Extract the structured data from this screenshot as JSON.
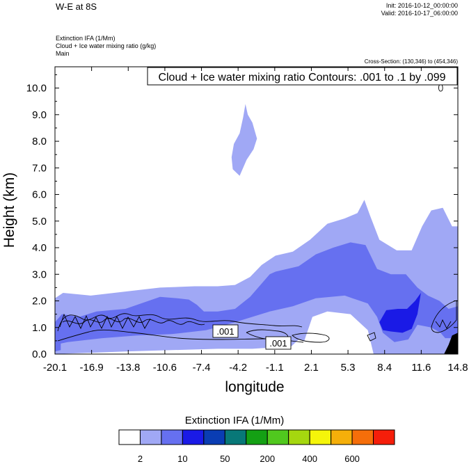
{
  "header": {
    "title": "W-E at 8S",
    "init": "Init: 2016-10-12_00:00:00",
    "valid": "Valid: 2016-10-17_06:00:00",
    "subtitle_lines": [
      "Extinction IFA   (1/Mm)",
      "Cloud + Ice water mixing ratio   (g/kg)",
      "Main"
    ],
    "cross_section": "Cross-Section: (130,346) to (454,346)"
  },
  "chart_data": {
    "type": "heatmap",
    "title": "W-E at 8S",
    "overlay_label": "Cloud + Ice water mixing ratio Contours: .001 to .1 by .099",
    "xlabel": "longitude",
    "ylabel": "Height (km)",
    "xlim": [
      -20.1,
      14.8
    ],
    "ylim": [
      0.0,
      10.8
    ],
    "x_ticks": [
      "-20.1",
      "-16.9",
      "-13.8",
      "-10.6",
      "-7.4",
      "-4.2",
      "-1.1",
      "2.1",
      "5.3",
      "8.4",
      "11.6",
      "14.8"
    ],
    "y_ticks": [
      "0.0",
      "1.0",
      "2.0",
      "3.0",
      "4.0",
      "5.0",
      "6.0",
      "7.0",
      "8.0",
      "9.0",
      "10.0"
    ],
    "contour_labels": [
      ".001",
      ".001"
    ],
    "colorbar": {
      "title": "Extinction IFA  (1/Mm)",
      "colors": [
        "#ffffff",
        "#a0a8f5",
        "#6670f0",
        "#1a1ae6",
        "#0a3db3",
        "#087878",
        "#14a014",
        "#50c81e",
        "#a5d70f",
        "#f5f50a",
        "#f5af0a",
        "#f56e0a",
        "#f51e0a"
      ],
      "labels": [
        "2",
        "10",
        "50",
        "200",
        "400",
        "600"
      ]
    },
    "bands": [
      {
        "level": 1,
        "color": "#a0a8f5",
        "polygons": [
          [
            [
              -20.1,
              0
            ],
            [
              -20.1,
              2.1
            ],
            [
              -19.4,
              2.3
            ],
            [
              -17,
              2.2
            ],
            [
              -14,
              2.35
            ],
            [
              -11,
              2.5
            ],
            [
              -8,
              2.55
            ],
            [
              -6,
              2.55
            ],
            [
              -4.5,
              2.6
            ],
            [
              -3.2,
              2.9
            ],
            [
              -2.2,
              3.35
            ],
            [
              -1,
              3.7
            ],
            [
              0.5,
              3.85
            ],
            [
              2,
              4.3
            ],
            [
              3.5,
              4.9
            ],
            [
              5,
              5.1
            ],
            [
              6.1,
              5.3
            ],
            [
              6.7,
              5.8
            ],
            [
              7.2,
              5.2
            ],
            [
              8,
              4.3
            ],
            [
              9.5,
              3.9
            ],
            [
              10.8,
              3.9
            ],
            [
              11.7,
              4.8
            ],
            [
              12.5,
              5.4
            ],
            [
              13.5,
              5.5
            ],
            [
              14.3,
              4.8
            ],
            [
              14.8,
              4.8
            ],
            [
              14.8,
              0
            ],
            [
              7.5,
              0
            ],
            [
              7.0,
              0.9
            ],
            [
              5.5,
              1.5
            ],
            [
              3.5,
              1.6
            ],
            [
              2.2,
              1.4
            ],
            [
              1.5,
              0.5
            ],
            [
              1.0,
              0.55
            ],
            [
              0.4,
              0.3
            ],
            [
              -3,
              0.2
            ],
            [
              -6,
              0.2
            ],
            [
              -10,
              0.15
            ],
            [
              -14,
              0.1
            ],
            [
              -20.1,
              0
            ]
          ],
          [
            [
              -4.8,
              7.4
            ],
            [
              -4.6,
              7.9
            ],
            [
              -4.1,
              8.3
            ],
            [
              -3.8,
              8.9
            ],
            [
              -3.6,
              9.4
            ],
            [
              -3.4,
              9.0
            ],
            [
              -3.0,
              8.7
            ],
            [
              -2.6,
              8.1
            ],
            [
              -2.9,
              7.7
            ],
            [
              -3.5,
              7.3
            ],
            [
              -4.1,
              6.7
            ],
            [
              -4.7,
              6.95
            ],
            [
              -4.8,
              7.4
            ]
          ]
        ]
      },
      {
        "level": 2,
        "color": "#6670f0",
        "polygons": [
          [
            [
              -20.1,
              1.2
            ],
            [
              -19.5,
              1.5
            ],
            [
              -18,
              1.4
            ],
            [
              -16.5,
              1.6
            ],
            [
              -14,
              1.7
            ],
            [
              -12,
              2.0
            ],
            [
              -11,
              2.15
            ],
            [
              -9.5,
              2.1
            ],
            [
              -8.5,
              2.05
            ],
            [
              -7.8,
              1.85
            ],
            [
              -7.2,
              1.6
            ],
            [
              -6,
              1.6
            ],
            [
              -4.5,
              1.7
            ],
            [
              -3.2,
              2.15
            ],
            [
              -2.3,
              2.6
            ],
            [
              -1.5,
              3.0
            ],
            [
              -1,
              3.1
            ],
            [
              1,
              3.3
            ],
            [
              2.5,
              3.75
            ],
            [
              4,
              4.0
            ],
            [
              5.5,
              4.2
            ],
            [
              6.8,
              4.1
            ],
            [
              7.8,
              3.2
            ],
            [
              9,
              3.0
            ],
            [
              10.3,
              3.0
            ],
            [
              11.3,
              2.5
            ],
            [
              12.2,
              2.2
            ],
            [
              13.2,
              2.0
            ],
            [
              14.0,
              1.7
            ],
            [
              14.8,
              1.8
            ],
            [
              14.8,
              0.6
            ],
            [
              13.7,
              0.6
            ],
            [
              13.3,
              0.8
            ],
            [
              12.5,
              1.0
            ],
            [
              11.3,
              1.1
            ],
            [
              10.5,
              0.55
            ],
            [
              9.3,
              0.45
            ],
            [
              8.3,
              0.8
            ],
            [
              7.8,
              1.4
            ],
            [
              7.0,
              1.9
            ],
            [
              5.0,
              2.2
            ],
            [
              2.5,
              2.1
            ],
            [
              0.5,
              1.8
            ],
            [
              -1.5,
              1.6
            ],
            [
              -4.5,
              1.2
            ],
            [
              -7,
              0.9
            ],
            [
              -10,
              0.75
            ],
            [
              -13,
              0.7
            ],
            [
              -16,
              0.6
            ],
            [
              -19,
              0.45
            ],
            [
              -20.1,
              0.35
            ]
          ],
          [
            [
              -20.1,
              0.3
            ],
            [
              -19.8,
              0.6
            ],
            [
              -19.6,
              0.4
            ],
            [
              -19.6,
              0.15
            ],
            [
              -20.1,
              0.1
            ]
          ]
        ]
      },
      {
        "level": 3,
        "color": "#1a1ae6",
        "polygons": [
          [
            [
              8.0,
              1.2
            ],
            [
              8.6,
              1.65
            ],
            [
              9.6,
              1.7
            ],
            [
              10.4,
              1.7
            ],
            [
              11.1,
              2.0
            ],
            [
              11.6,
              2.3
            ],
            [
              11.3,
              1.5
            ],
            [
              10.8,
              0.95
            ],
            [
              10.0,
              0.8
            ],
            [
              9.0,
              0.85
            ],
            [
              8.3,
              0.9
            ],
            [
              8.0,
              1.2
            ]
          ]
        ]
      }
    ],
    "hatch_region": [
      [
        13.6,
        0
      ],
      [
        14.8,
        0
      ],
      [
        14.8,
        0.8
      ],
      [
        14.3,
        0.7
      ],
      [
        14.0,
        0.35
      ],
      [
        13.6,
        0
      ]
    ]
  }
}
